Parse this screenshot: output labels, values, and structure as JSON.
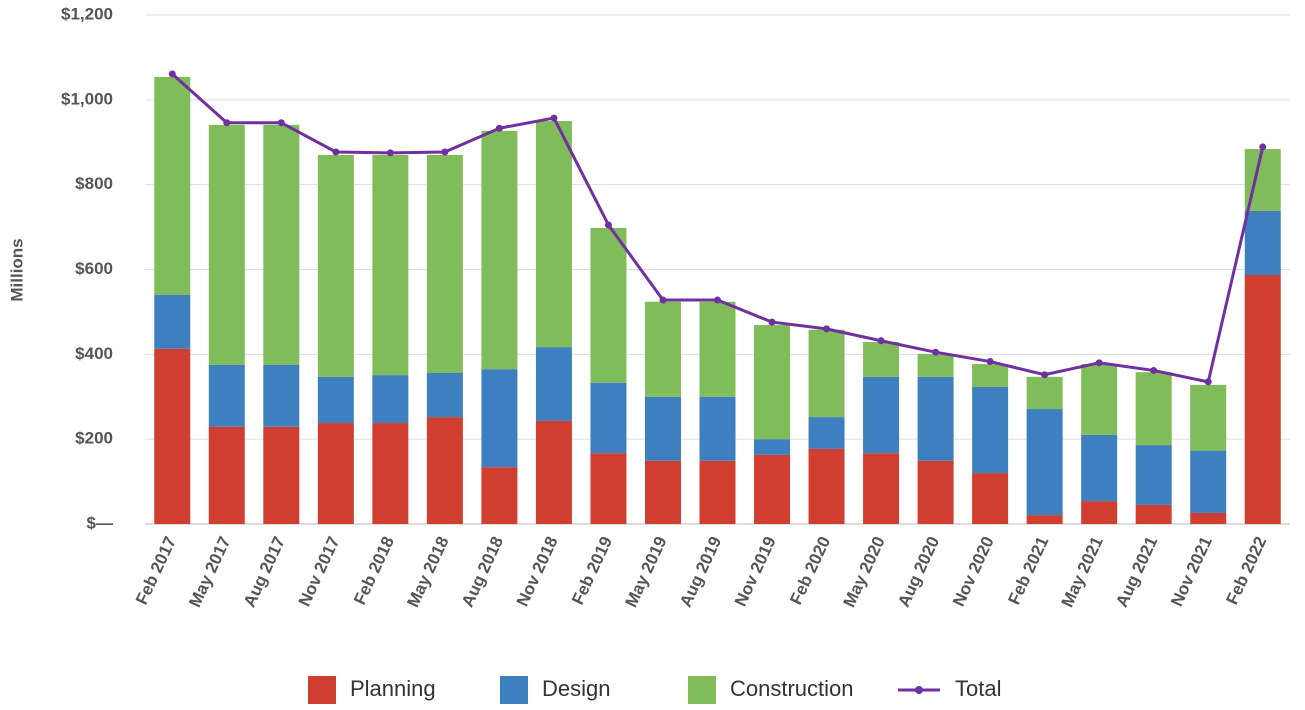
{
  "chart_data": {
    "type": "bar",
    "stacked": true,
    "y_label": "Millions",
    "categories": [
      "Feb 2017",
      "May 2017",
      "Aug 2017",
      "Nov 2017",
      "Feb 2018",
      "May 2018",
      "Aug 2018",
      "Nov 2018",
      "Feb 2019",
      "May 2019",
      "Aug 2019",
      "Nov 2019",
      "Feb 2020",
      "May 2020",
      "Aug 2020",
      "Nov 2020",
      "Feb 2021",
      "May 2021",
      "Aug 2021",
      "Nov 2021",
      "Feb 2022"
    ],
    "series": [
      {
        "name": "Planning",
        "color": "#d03e30",
        "values": [
          413,
          229,
          229,
          238,
          238,
          252,
          134,
          243,
          167,
          149,
          149,
          163,
          177,
          167,
          149,
          120,
          21,
          54,
          45,
          26,
          587
        ]
      },
      {
        "name": "Design",
        "color": "#3d7fbf",
        "values": [
          127,
          146,
          146,
          109,
          113,
          104,
          231,
          174,
          166,
          151,
          151,
          37,
          75,
          180,
          198,
          203,
          250,
          156,
          141,
          147,
          151
        ]
      },
      {
        "name": "Construction",
        "color": "#80bc5a",
        "values": [
          514,
          566,
          566,
          523,
          519,
          514,
          562,
          533,
          365,
          224,
          224,
          269,
          206,
          82,
          54,
          54,
          76,
          167,
          172,
          155,
          146
        ]
      },
      {
        "name": "Total",
        "type": "line",
        "color": "#7030a0",
        "values": [
          1061,
          946,
          946,
          877,
          875,
          877,
          933,
          957,
          705,
          528,
          528,
          476,
          460,
          432,
          405,
          383,
          352,
          380,
          362,
          335,
          889
        ]
      }
    ],
    "ylim": [
      0,
      1200
    ],
    "yticks": [
      {
        "value": 0,
        "label": "$—"
      },
      {
        "value": 200,
        "label": "$200"
      },
      {
        "value": 400,
        "label": "$400"
      },
      {
        "value": 600,
        "label": "$600"
      },
      {
        "value": 800,
        "label": "$800"
      },
      {
        "value": 1000,
        "label": "$1,000"
      },
      {
        "value": 1200,
        "label": "$1,200"
      }
    ],
    "grid": true,
    "legend": "bottom"
  }
}
